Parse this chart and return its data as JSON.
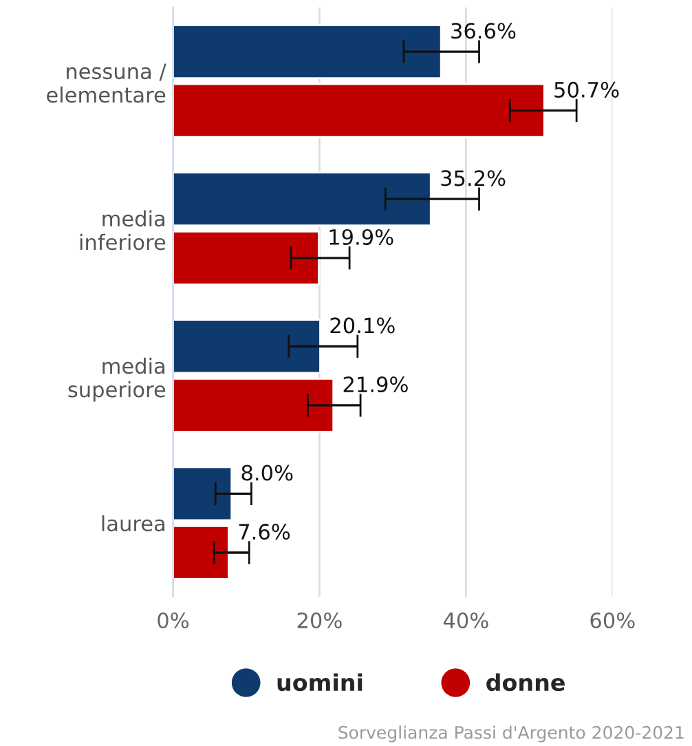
{
  "chart_data": {
    "type": "bar",
    "orientation": "horizontal",
    "categories": [
      "nessuna /\nelementare",
      "media\ninferiore",
      "media\nsuperiore",
      "laurea"
    ],
    "series": [
      {
        "name": "uomini",
        "color": "#0e3a6e",
        "values": [
          36.6,
          35.2,
          20.1,
          8.0
        ],
        "value_labels": [
          "36.6%",
          "35.2%",
          "20.1%",
          "8.0%"
        ],
        "errors": [
          [
            31.5,
            41.8
          ],
          [
            29.0,
            41.8
          ],
          [
            15.8,
            25.2
          ],
          [
            5.8,
            10.7
          ]
        ]
      },
      {
        "name": "donne",
        "color": "#c00000",
        "values": [
          50.7,
          19.9,
          21.9,
          7.6
        ],
        "value_labels": [
          "50.7%",
          "19.9%",
          "21.9%",
          "7.6%"
        ],
        "errors": [
          [
            46.0,
            55.1
          ],
          [
            16.1,
            24.1
          ],
          [
            18.4,
            25.6
          ],
          [
            5.6,
            10.4
          ]
        ]
      }
    ],
    "xlim": [
      0,
      60
    ],
    "xticks": [
      {
        "value": 0,
        "label": "0%"
      },
      {
        "value": 20,
        "label": "20%"
      },
      {
        "value": 40,
        "label": "40%"
      },
      {
        "value": 60,
        "label": "60%"
      }
    ],
    "grid": "x",
    "legend": "bottom",
    "annotations": [
      "Sorveglianza Passi d'Argento 2020-2021"
    ]
  }
}
